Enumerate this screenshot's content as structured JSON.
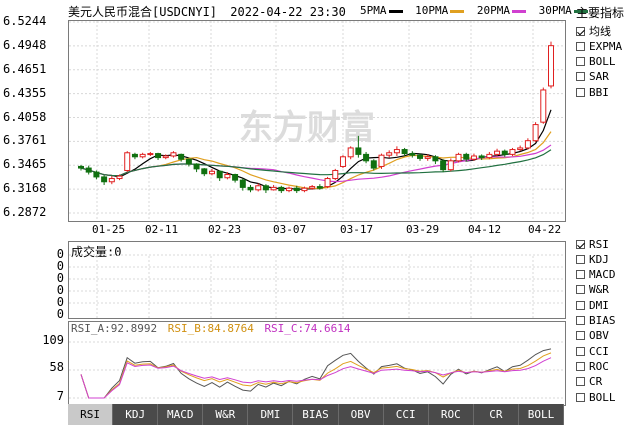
{
  "header": {
    "title": "美元人民币混合[USDCNYI]",
    "datetime": "2022-04-22 23:30",
    "ma": [
      {
        "label": "5PMA",
        "color": "#000000"
      },
      {
        "label": "10PMA",
        "color": "#e0a020"
      },
      {
        "label": "20PMA",
        "color": "#d040d0"
      },
      {
        "label": "30PMA",
        "color": "#207040"
      }
    ]
  },
  "watermark": "东方财富",
  "price_axis": [
    "6.5244",
    "6.4948",
    "6.4651",
    "6.4355",
    "6.4058",
    "6.3761",
    "6.3465",
    "6.3168",
    "6.2872"
  ],
  "date_axis": [
    "01-25",
    "02-11",
    "02-23",
    "03-07",
    "03-17",
    "03-29",
    "04-12",
    "04-22"
  ],
  "volume": {
    "label": "成交量:0",
    "axis": [
      "0",
      "0",
      "0",
      "0",
      "0",
      "0"
    ]
  },
  "rsi": {
    "a_label": "RSI_A:92.8992",
    "b_label": "RSI_B:84.8764",
    "c_label": "RSI_C:74.6614",
    "axis": [
      "109",
      "58",
      "7"
    ],
    "colors": {
      "a": "#555555",
      "b": "#e0a020",
      "c": "#d040d0"
    }
  },
  "side_top": {
    "title": "主要指标",
    "items": [
      {
        "label": "均线",
        "checked": true
      },
      {
        "label": "EXPMA",
        "checked": false
      },
      {
        "label": "BOLL",
        "checked": false
      },
      {
        "label": "SAR",
        "checked": false
      },
      {
        "label": "BBI",
        "checked": false
      }
    ]
  },
  "side_bottom": {
    "items": [
      {
        "label": "RSI",
        "checked": true
      },
      {
        "label": "KDJ",
        "checked": false
      },
      {
        "label": "MACD",
        "checked": false
      },
      {
        "label": "W&R",
        "checked": false
      },
      {
        "label": "DMI",
        "checked": false
      },
      {
        "label": "BIAS",
        "checked": false
      },
      {
        "label": "OBV",
        "checked": false
      },
      {
        "label": "CCI",
        "checked": false
      },
      {
        "label": "ROC",
        "checked": false
      },
      {
        "label": "CR",
        "checked": false
      },
      {
        "label": "BOLL",
        "checked": false
      }
    ]
  },
  "tabs": [
    "RSI",
    "KDJ",
    "MACD",
    "W&R",
    "DMI",
    "BIAS",
    "OBV",
    "CCI",
    "ROC",
    "CR",
    "BOLL"
  ],
  "active_tab": "RSI",
  "chart_data": {
    "type": "candlestick",
    "y_range": [
      6.2872,
      6.5244
    ],
    "candles": [
      {
        "o": 6.345,
        "c": 6.343,
        "h": 6.347,
        "l": 6.34
      },
      {
        "o": 6.343,
        "c": 6.338,
        "h": 6.346,
        "l": 6.335
      },
      {
        "o": 6.338,
        "c": 6.332,
        "h": 6.34,
        "l": 6.329
      },
      {
        "o": 6.332,
        "c": 6.326,
        "h": 6.334,
        "l": 6.322
      },
      {
        "o": 6.326,
        "c": 6.33,
        "h": 6.333,
        "l": 6.323
      },
      {
        "o": 6.33,
        "c": 6.333,
        "h": 6.335,
        "l": 6.328
      },
      {
        "o": 6.34,
        "c": 6.362,
        "h": 6.364,
        "l": 6.338
      },
      {
        "o": 6.36,
        "c": 6.357,
        "h": 6.362,
        "l": 6.354
      },
      {
        "o": 6.357,
        "c": 6.36,
        "h": 6.362,
        "l": 6.355
      },
      {
        "o": 6.36,
        "c": 6.361,
        "h": 6.363,
        "l": 6.358
      },
      {
        "o": 6.361,
        "c": 6.356,
        "h": 6.362,
        "l": 6.353
      },
      {
        "o": 6.356,
        "c": 6.358,
        "h": 6.36,
        "l": 6.354
      },
      {
        "o": 6.358,
        "c": 6.362,
        "h": 6.364,
        "l": 6.356
      },
      {
        "o": 6.36,
        "c": 6.354,
        "h": 6.361,
        "l": 6.351
      },
      {
        "o": 6.354,
        "c": 6.348,
        "h": 6.355,
        "l": 6.345
      },
      {
        "o": 6.348,
        "c": 6.342,
        "h": 6.349,
        "l": 6.338
      },
      {
        "o": 6.342,
        "c": 6.336,
        "h": 6.343,
        "l": 6.333
      },
      {
        "o": 6.336,
        "c": 6.339,
        "h": 6.342,
        "l": 6.334
      },
      {
        "o": 6.339,
        "c": 6.331,
        "h": 6.34,
        "l": 6.327
      },
      {
        "o": 6.331,
        "c": 6.335,
        "h": 6.338,
        "l": 6.329
      },
      {
        "o": 6.335,
        "c": 6.328,
        "h": 6.336,
        "l": 6.325
      },
      {
        "o": 6.328,
        "c": 6.319,
        "h": 6.33,
        "l": 6.315
      },
      {
        "o": 6.319,
        "c": 6.316,
        "h": 6.322,
        "l": 6.313
      },
      {
        "o": 6.316,
        "c": 6.321,
        "h": 6.324,
        "l": 6.314
      },
      {
        "o": 6.321,
        "c": 6.316,
        "h": 6.323,
        "l": 6.312
      },
      {
        "o": 6.316,
        "c": 6.319,
        "h": 6.322,
        "l": 6.315
      },
      {
        "o": 6.319,
        "c": 6.315,
        "h": 6.321,
        "l": 6.312
      },
      {
        "o": 6.315,
        "c": 6.318,
        "h": 6.32,
        "l": 6.313
      },
      {
        "o": 6.318,
        "c": 6.315,
        "h": 6.321,
        "l": 6.312
      },
      {
        "o": 6.315,
        "c": 6.318,
        "h": 6.32,
        "l": 6.313
      },
      {
        "o": 6.318,
        "c": 6.32,
        "h": 6.322,
        "l": 6.316
      },
      {
        "o": 6.32,
        "c": 6.318,
        "h": 6.323,
        "l": 6.316
      },
      {
        "o": 6.32,
        "c": 6.33,
        "h": 6.332,
        "l": 6.318
      },
      {
        "o": 6.33,
        "c": 6.34,
        "h": 6.342,
        "l": 6.328
      },
      {
        "o": 6.345,
        "c": 6.357,
        "h": 6.359,
        "l": 6.343
      },
      {
        "o": 6.357,
        "c": 6.368,
        "h": 6.37,
        "l": 6.354
      },
      {
        "o": 6.368,
        "c": 6.36,
        "h": 6.383,
        "l": 6.356
      },
      {
        "o": 6.36,
        "c": 6.352,
        "h": 6.363,
        "l": 6.349
      },
      {
        "o": 6.352,
        "c": 6.343,
        "h": 6.354,
        "l": 6.34
      },
      {
        "o": 6.345,
        "c": 6.359,
        "h": 6.361,
        "l": 6.342
      },
      {
        "o": 6.359,
        "c": 6.362,
        "h": 6.365,
        "l": 6.356
      },
      {
        "o": 6.362,
        "c": 6.366,
        "h": 6.37,
        "l": 6.358
      },
      {
        "o": 6.366,
        "c": 6.361,
        "h": 6.368,
        "l": 6.358
      },
      {
        "o": 6.361,
        "c": 6.359,
        "h": 6.364,
        "l": 6.356
      },
      {
        "o": 6.359,
        "c": 6.355,
        "h": 6.361,
        "l": 6.352
      },
      {
        "o": 6.355,
        "c": 6.357,
        "h": 6.36,
        "l": 6.352
      },
      {
        "o": 6.357,
        "c": 6.352,
        "h": 6.359,
        "l": 6.348
      },
      {
        "o": 6.352,
        "c": 6.341,
        "h": 6.354,
        "l": 6.338
      },
      {
        "o": 6.341,
        "c": 6.352,
        "h": 6.355,
        "l": 6.339
      },
      {
        "o": 6.352,
        "c": 6.36,
        "h": 6.362,
        "l": 6.35
      },
      {
        "o": 6.36,
        "c": 6.354,
        "h": 6.362,
        "l": 6.351
      },
      {
        "o": 6.354,
        "c": 6.358,
        "h": 6.361,
        "l": 6.352
      },
      {
        "o": 6.358,
        "c": 6.356,
        "h": 6.36,
        "l": 6.353
      },
      {
        "o": 6.356,
        "c": 6.36,
        "h": 6.363,
        "l": 6.354
      },
      {
        "o": 6.36,
        "c": 6.364,
        "h": 6.367,
        "l": 6.358
      },
      {
        "o": 6.364,
        "c": 6.36,
        "h": 6.366,
        "l": 6.357
      },
      {
        "o": 6.36,
        "c": 6.366,
        "h": 6.368,
        "l": 6.358
      },
      {
        "o": 6.366,
        "c": 6.368,
        "h": 6.371,
        "l": 6.364
      },
      {
        "o": 6.368,
        "c": 6.377,
        "h": 6.38,
        "l": 6.366
      },
      {
        "o": 6.377,
        "c": 6.397,
        "h": 6.4,
        "l": 6.375
      },
      {
        "o": 6.4,
        "c": 6.44,
        "h": 6.443,
        "l": 6.398
      },
      {
        "o": 6.445,
        "c": 6.495,
        "h": 6.5,
        "l": 6.442
      }
    ],
    "rsi": {
      "a_last": 92.8992,
      "b_last": 84.8764,
      "c_last": 74.6614,
      "y_range": [
        7,
        109
      ]
    }
  }
}
